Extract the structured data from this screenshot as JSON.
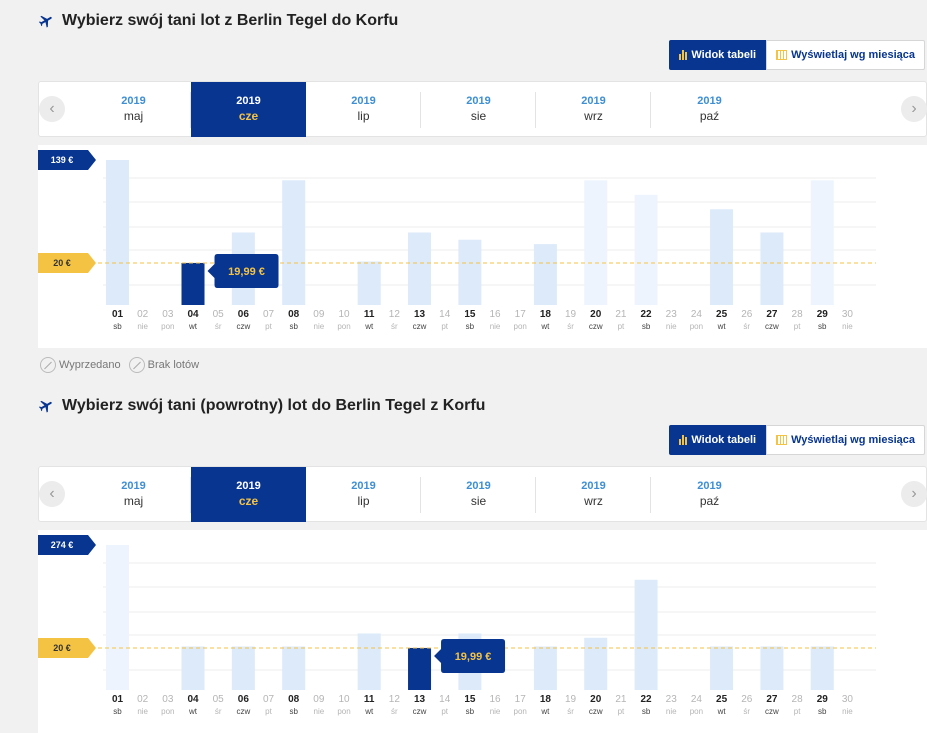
{
  "sections": [
    {
      "title": "Wybierz swój tani lot z Berlin Tegel do Korfu",
      "view_toggle": {
        "table_label": "Widok tabeli",
        "month_label": "Wyświetlaj wg miesiąca"
      },
      "months": [
        {
          "year": "2019",
          "month": "maj",
          "active": false
        },
        {
          "year": "2019",
          "month": "cze",
          "active": true
        },
        {
          "year": "2019",
          "month": "lip",
          "active": false
        },
        {
          "year": "2019",
          "month": "sie",
          "active": false
        },
        {
          "year": "2019",
          "month": "wrz",
          "active": false
        },
        {
          "year": "2019",
          "month": "paź",
          "active": false
        }
      ],
      "chart": {
        "max_label": "139 €",
        "ref_label": "20 €",
        "selected_price": "19,99 €",
        "selected_day": "04",
        "days": [
          {
            "d": "01",
            "w": "sb",
            "bold": true,
            "bar": 1.0,
            "style": "norm"
          },
          {
            "d": "02",
            "w": "nie",
            "bold": false,
            "bar": 0,
            "style": "norm"
          },
          {
            "d": "03",
            "w": "pon",
            "bold": false,
            "bar": 0,
            "style": "norm"
          },
          {
            "d": "04",
            "w": "wt",
            "bold": true,
            "bar": 0.29,
            "style": "sel"
          },
          {
            "d": "05",
            "w": "śr",
            "bold": false,
            "bar": 0,
            "style": "norm"
          },
          {
            "d": "06",
            "w": "czw",
            "bold": true,
            "bar": 0.5,
            "style": "norm"
          },
          {
            "d": "07",
            "w": "pt",
            "bold": false,
            "bar": 0,
            "style": "norm"
          },
          {
            "d": "08",
            "w": "sb",
            "bold": true,
            "bar": 0.86,
            "style": "norm"
          },
          {
            "d": "09",
            "w": "nie",
            "bold": false,
            "bar": 0,
            "style": "norm"
          },
          {
            "d": "10",
            "w": "pon",
            "bold": false,
            "bar": 0,
            "style": "norm"
          },
          {
            "d": "11",
            "w": "wt",
            "bold": true,
            "bar": 0.3,
            "style": "norm"
          },
          {
            "d": "12",
            "w": "śr",
            "bold": false,
            "bar": 0,
            "style": "norm"
          },
          {
            "d": "13",
            "w": "czw",
            "bold": true,
            "bar": 0.5,
            "style": "norm"
          },
          {
            "d": "14",
            "w": "pt",
            "bold": false,
            "bar": 0,
            "style": "norm"
          },
          {
            "d": "15",
            "w": "sb",
            "bold": true,
            "bar": 0.45,
            "style": "norm"
          },
          {
            "d": "16",
            "w": "nie",
            "bold": false,
            "bar": 0,
            "style": "norm"
          },
          {
            "d": "17",
            "w": "pon",
            "bold": false,
            "bar": 0,
            "style": "norm"
          },
          {
            "d": "18",
            "w": "wt",
            "bold": true,
            "bar": 0.42,
            "style": "norm"
          },
          {
            "d": "19",
            "w": "śr",
            "bold": false,
            "bar": 0,
            "style": "norm"
          },
          {
            "d": "20",
            "w": "czw",
            "bold": true,
            "bar": 0.86,
            "style": "light"
          },
          {
            "d": "21",
            "w": "pt",
            "bold": false,
            "bar": 0,
            "style": "norm"
          },
          {
            "d": "22",
            "w": "sb",
            "bold": true,
            "bar": 0.76,
            "style": "light"
          },
          {
            "d": "23",
            "w": "nie",
            "bold": false,
            "bar": 0,
            "style": "norm"
          },
          {
            "d": "24",
            "w": "pon",
            "bold": false,
            "bar": 0,
            "style": "norm"
          },
          {
            "d": "25",
            "w": "wt",
            "bold": true,
            "bar": 0.66,
            "style": "norm"
          },
          {
            "d": "26",
            "w": "śr",
            "bold": false,
            "bar": 0,
            "style": "norm"
          },
          {
            "d": "27",
            "w": "czw",
            "bold": true,
            "bar": 0.5,
            "style": "norm"
          },
          {
            "d": "28",
            "w": "pt",
            "bold": false,
            "bar": 0,
            "style": "norm"
          },
          {
            "d": "29",
            "w": "sb",
            "bold": true,
            "bar": 0.86,
            "style": "light"
          },
          {
            "d": "30",
            "w": "nie",
            "bold": false,
            "bar": 0,
            "style": "norm"
          }
        ]
      },
      "legend": {
        "sold_out": "Wyprzedano",
        "no_flights": "Brak lotów"
      }
    },
    {
      "title": "Wybierz swój tani (powrotny) lot do Berlin Tegel z Korfu",
      "view_toggle": {
        "table_label": "Widok tabeli",
        "month_label": "Wyświetlaj wg miesiąca"
      },
      "months": [
        {
          "year": "2019",
          "month": "maj",
          "active": false
        },
        {
          "year": "2019",
          "month": "cze",
          "active": true
        },
        {
          "year": "2019",
          "month": "lip",
          "active": false
        },
        {
          "year": "2019",
          "month": "sie",
          "active": false
        },
        {
          "year": "2019",
          "month": "wrz",
          "active": false
        },
        {
          "year": "2019",
          "month": "paź",
          "active": false
        }
      ],
      "chart": {
        "max_label": "274 €",
        "ref_label": "20 €",
        "selected_price": "19,99 €",
        "selected_day": "13",
        "days": [
          {
            "d": "01",
            "w": "sb",
            "bold": true,
            "bar": 1.0,
            "style": "light"
          },
          {
            "d": "02",
            "w": "nie",
            "bold": false,
            "bar": 0,
            "style": "norm"
          },
          {
            "d": "03",
            "w": "pon",
            "bold": false,
            "bar": 0,
            "style": "norm"
          },
          {
            "d": "04",
            "w": "wt",
            "bold": true,
            "bar": 0.3,
            "style": "norm"
          },
          {
            "d": "05",
            "w": "śr",
            "bold": false,
            "bar": 0,
            "style": "norm"
          },
          {
            "d": "06",
            "w": "czw",
            "bold": true,
            "bar": 0.3,
            "style": "norm"
          },
          {
            "d": "07",
            "w": "pt",
            "bold": false,
            "bar": 0,
            "style": "norm"
          },
          {
            "d": "08",
            "w": "sb",
            "bold": true,
            "bar": 0.3,
            "style": "norm"
          },
          {
            "d": "09",
            "w": "nie",
            "bold": false,
            "bar": 0,
            "style": "norm"
          },
          {
            "d": "10",
            "w": "pon",
            "bold": false,
            "bar": 0,
            "style": "norm"
          },
          {
            "d": "11",
            "w": "wt",
            "bold": true,
            "bar": 0.39,
            "style": "norm"
          },
          {
            "d": "12",
            "w": "śr",
            "bold": false,
            "bar": 0,
            "style": "norm"
          },
          {
            "d": "13",
            "w": "czw",
            "bold": true,
            "bar": 0.29,
            "style": "sel"
          },
          {
            "d": "14",
            "w": "pt",
            "bold": false,
            "bar": 0,
            "style": "norm"
          },
          {
            "d": "15",
            "w": "sb",
            "bold": true,
            "bar": 0.39,
            "style": "norm"
          },
          {
            "d": "16",
            "w": "nie",
            "bold": false,
            "bar": 0,
            "style": "norm"
          },
          {
            "d": "17",
            "w": "pon",
            "bold": false,
            "bar": 0,
            "style": "norm"
          },
          {
            "d": "18",
            "w": "wt",
            "bold": true,
            "bar": 0.3,
            "style": "norm"
          },
          {
            "d": "19",
            "w": "śr",
            "bold": false,
            "bar": 0,
            "style": "norm"
          },
          {
            "d": "20",
            "w": "czw",
            "bold": true,
            "bar": 0.36,
            "style": "norm"
          },
          {
            "d": "21",
            "w": "pt",
            "bold": false,
            "bar": 0,
            "style": "norm"
          },
          {
            "d": "22",
            "w": "sb",
            "bold": true,
            "bar": 0.76,
            "style": "norm"
          },
          {
            "d": "23",
            "w": "nie",
            "bold": false,
            "bar": 0,
            "style": "norm"
          },
          {
            "d": "24",
            "w": "pon",
            "bold": false,
            "bar": 0,
            "style": "norm"
          },
          {
            "d": "25",
            "w": "wt",
            "bold": true,
            "bar": 0.3,
            "style": "norm"
          },
          {
            "d": "26",
            "w": "śr",
            "bold": false,
            "bar": 0,
            "style": "norm"
          },
          {
            "d": "27",
            "w": "czw",
            "bold": true,
            "bar": 0.3,
            "style": "norm"
          },
          {
            "d": "28",
            "w": "pt",
            "bold": false,
            "bar": 0,
            "style": "norm"
          },
          {
            "d": "29",
            "w": "sb",
            "bold": true,
            "bar": 0.3,
            "style": "norm"
          },
          {
            "d": "30",
            "w": "nie",
            "bold": false,
            "bar": 0,
            "style": "norm"
          }
        ]
      },
      "legend": null
    }
  ],
  "colors": {
    "brand_navy": "#073590",
    "accent_yellow": "#f5c343",
    "bar_light_blue": "#dceafa",
    "bar_faint_blue": "#eef4fd",
    "link_blue": "#3d8fd6"
  },
  "icons": {
    "plane": "plane-icon",
    "table_view": "bar-chart-icon",
    "month_view": "calendar-icon",
    "prev": "chevron-left-icon",
    "next": "chevron-right-icon",
    "sold_out": "sold-out-icon",
    "no_flights": "no-flights-icon"
  }
}
